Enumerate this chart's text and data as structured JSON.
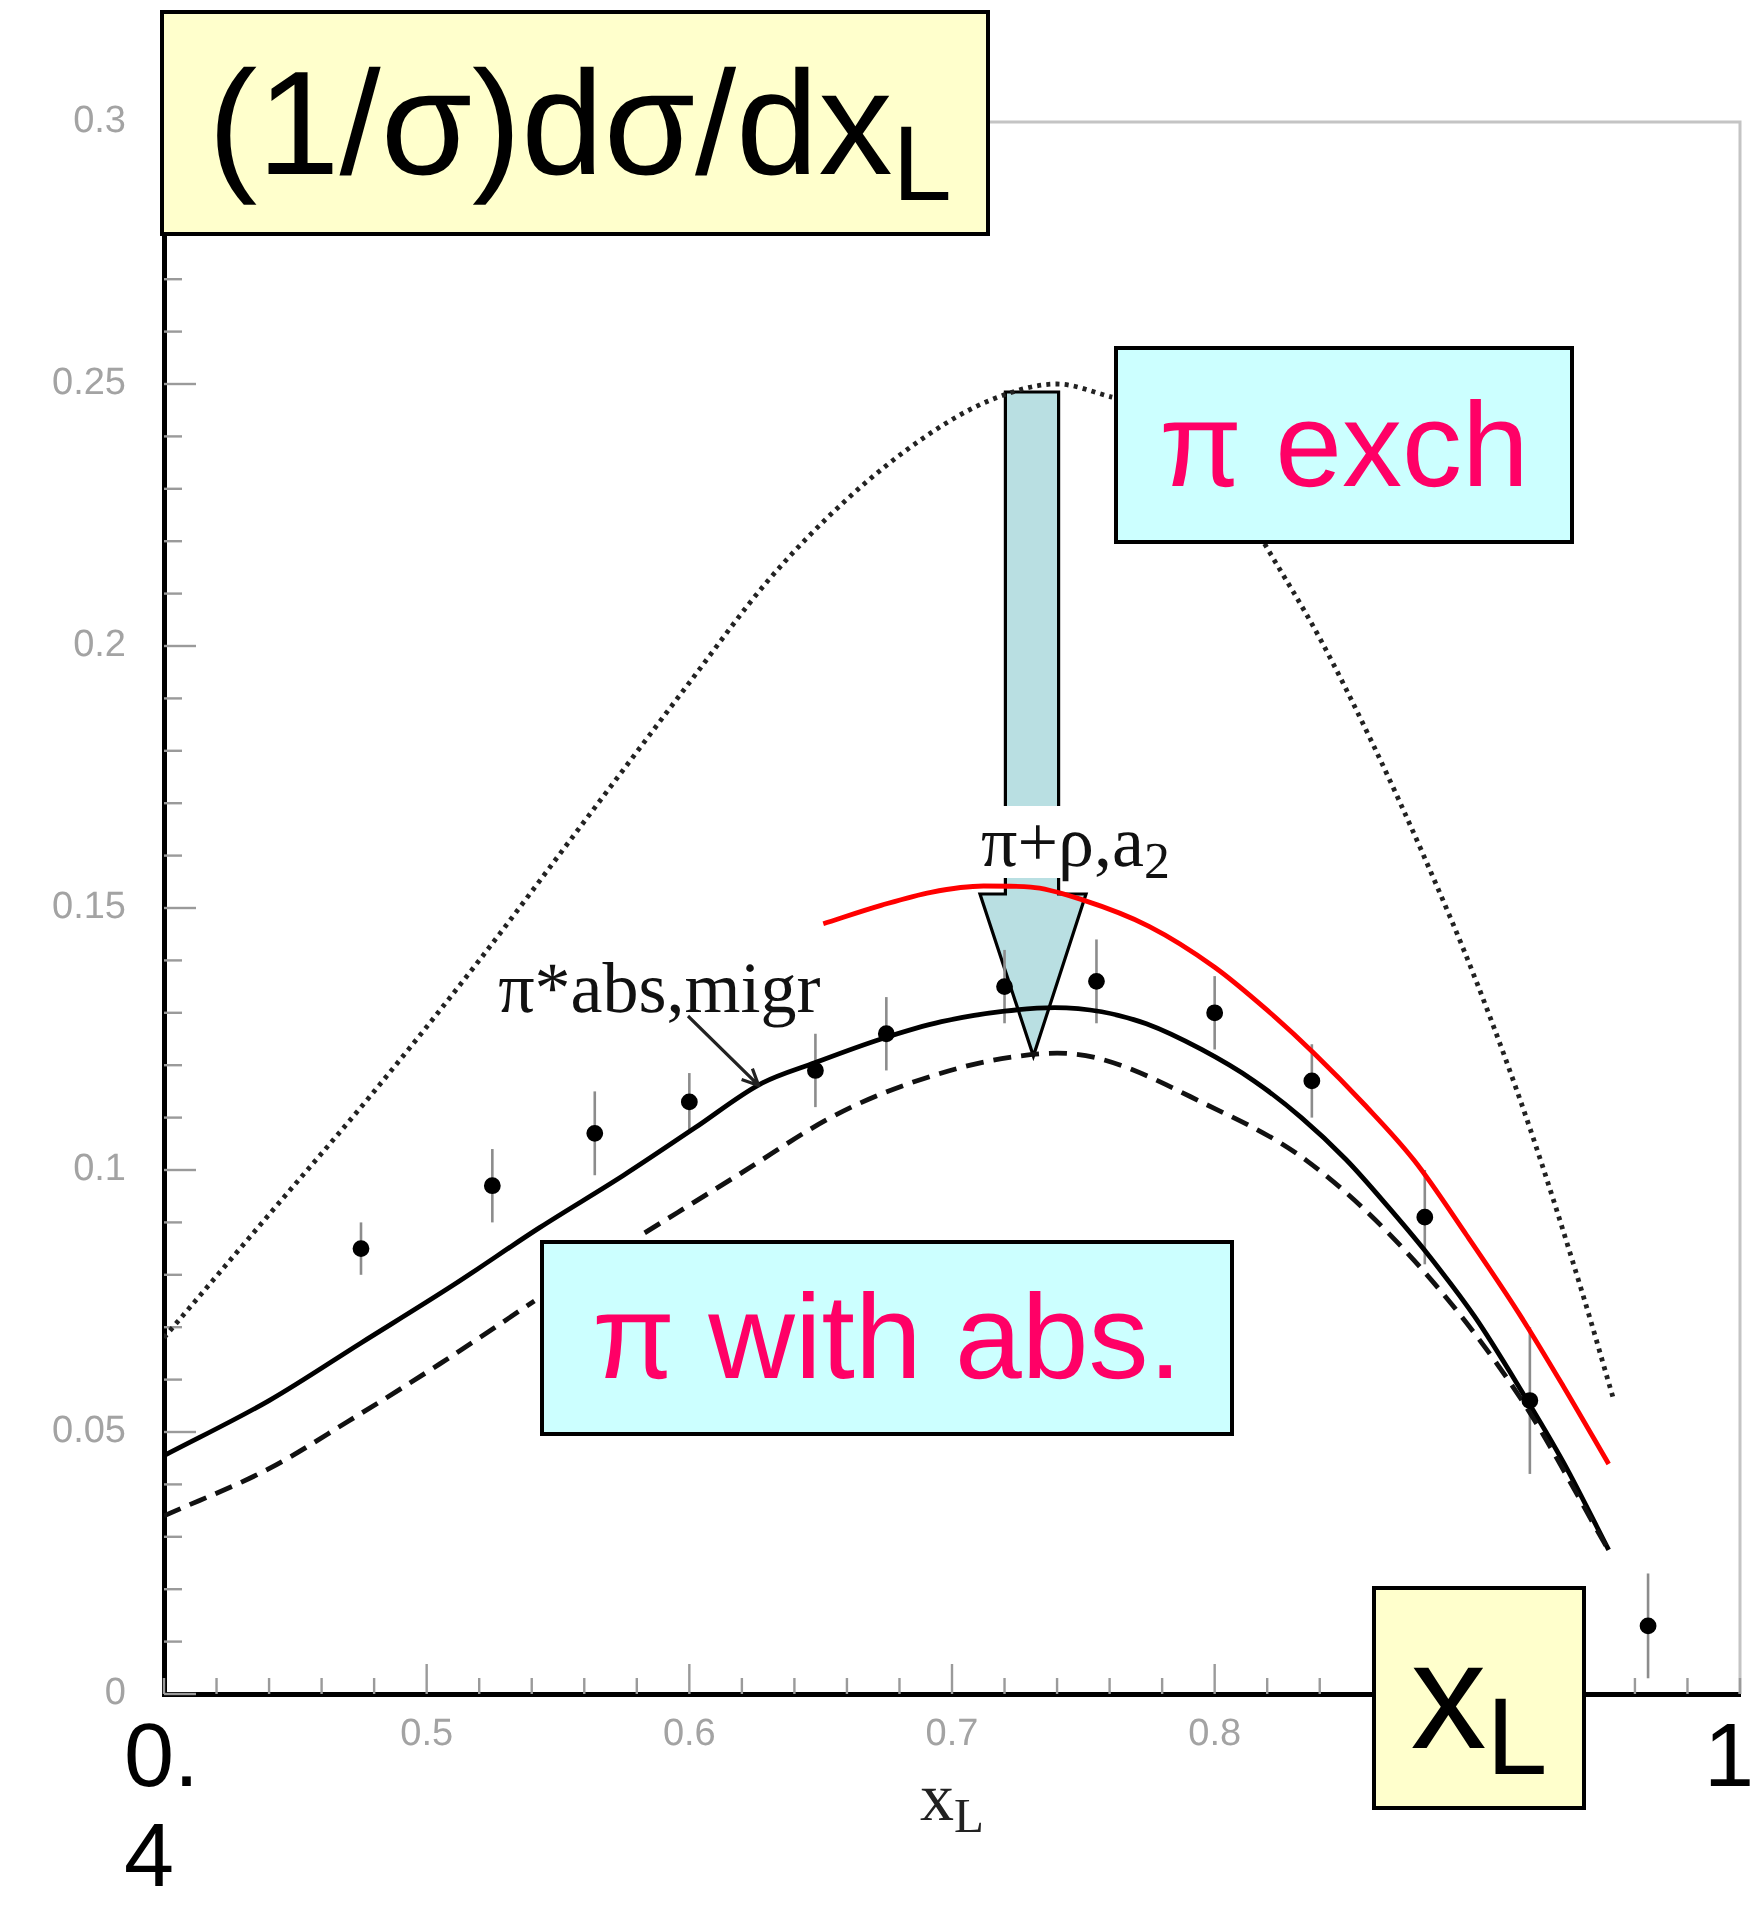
{
  "chart_data": {
    "type": "line",
    "ylabel": "(1/σ)dσ/dx$_{L}$",
    "xlabel": "x$_{L}$",
    "xlim": [
      0.4,
      1
    ],
    "ylim": [
      0,
      0.3
    ],
    "xticks": [
      {
        "value": 0.4,
        "label": null
      },
      {
        "value": 0.42,
        "label": null
      },
      {
        "value": 0.44,
        "label": null
      },
      {
        "value": 0.46,
        "label": null
      },
      {
        "value": 0.48,
        "label": null
      },
      0.5,
      {
        "value": 0.52,
        "label": null
      },
      {
        "value": 0.54,
        "label": null
      },
      {
        "value": 0.56,
        "label": null
      },
      {
        "value": 0.58,
        "label": null
      },
      0.6,
      {
        "value": 0.62,
        "label": null
      },
      {
        "value": 0.64,
        "label": null
      },
      {
        "value": 0.66,
        "label": null
      },
      {
        "value": 0.68,
        "label": null
      },
      0.7,
      {
        "value": 0.72,
        "label": null
      },
      {
        "value": 0.74,
        "label": null
      },
      {
        "value": 0.76,
        "label": null
      },
      {
        "value": 0.78,
        "label": null
      },
      0.8,
      {
        "value": 0.82,
        "label": null
      },
      {
        "value": 0.84,
        "label": null
      },
      {
        "value": 0.96,
        "label": null
      },
      {
        "value": 0.98,
        "label": null
      },
      {
        "value": 1,
        "label": null
      }
    ],
    "yticks": [
      0,
      {
        "value": 0.01,
        "label": null
      },
      {
        "value": 0.02,
        "label": null
      },
      {
        "value": 0.03,
        "label": null
      },
      {
        "value": 0.04,
        "label": null
      },
      0.05,
      {
        "value": 0.06,
        "label": null
      },
      {
        "value": 0.07,
        "label": null
      },
      {
        "value": 0.08,
        "label": null
      },
      {
        "value": 0.09,
        "label": null
      },
      0.1,
      {
        "value": 0.11,
        "label": null
      },
      {
        "value": 0.12,
        "label": null
      },
      {
        "value": 0.13,
        "label": null
      },
      {
        "value": 0.14,
        "label": null
      },
      0.15,
      {
        "value": 0.16,
        "label": null
      },
      {
        "value": 0.17,
        "label": null
      },
      {
        "value": 0.18,
        "label": null
      },
      {
        "value": 0.19,
        "label": null
      },
      0.2,
      {
        "value": 0.21,
        "label": null
      },
      {
        "value": 0.22,
        "label": null
      },
      {
        "value": 0.23,
        "label": null
      },
      {
        "value": 0.24,
        "label": null
      },
      0.25,
      {
        "value": 0.26,
        "label": null
      },
      {
        "value": 0.27,
        "label": null
      },
      0.3
    ],
    "marker": "none",
    "series": [
      {
        "line_style": "dotted",
        "color": "#222222",
        "x": [
          0.4,
          0.44,
          0.48,
          0.52,
          0.56,
          0.6,
          0.63,
          0.66,
          0.69,
          0.715,
          0.74,
          0.761,
          0.79,
          0.819,
          0.84,
          0.86,
          0.88,
          0.9,
          0.92,
          0.94,
          0.952
        ],
        "values": [
          0.068,
          0.0915,
          0.115,
          0.14,
          0.1665,
          0.193,
          0.2125,
          0.228,
          0.24,
          0.247,
          0.25,
          0.2475,
          null,
          0.2195,
          0.2015,
          0.1815,
          0.1595,
          0.1355,
          0.108,
          0.0765,
          0.056
        ]
      },
      {
        "line_style": "dashed",
        "color": "#111111",
        "x": [
          0.4,
          0.44,
          0.47,
          0.505,
          0.541,
          0.562,
          0.583,
          0.62,
          0.652,
          0.673,
          0.703,
          0.722,
          0.74,
          0.758,
          0.794,
          0.835,
          0.876,
          0.916,
          0.95
        ],
        "values": [
          0.034,
          0.043,
          0.052,
          0.063,
          0.075,
          null,
          0.088,
          0.0995,
          0.1095,
          0.1145,
          0.1195,
          0.1215,
          0.1223,
          0.121,
          0.1132,
          0.1018,
          0.0827,
          0.0568,
          0.0274
        ]
      },
      {
        "line_style": "solid",
        "color": "#000000",
        "x": [
          0.4,
          0.44,
          0.475,
          0.51,
          0.543,
          0.575,
          0.602,
          0.627,
          0.648,
          0.673,
          0.696,
          0.72,
          0.739,
          0.757,
          0.774,
          0.795,
          0.815,
          0.833,
          0.85,
          0.866,
          0.881,
          0.899,
          0.916,
          0.933,
          0.95
        ],
        "values": [
          0.0455,
          0.056,
          0.067,
          0.078,
          0.089,
          0.099,
          0.108,
          0.1164,
          0.1205,
          0.125,
          0.1283,
          0.1303,
          0.131,
          0.1302,
          0.1279,
          0.123,
          0.117,
          0.11,
          0.102,
          0.093,
          0.084,
          0.072,
          0.0585,
          0.044,
          0.0275
        ]
      },
      {
        "line_style": "solid",
        "color": "#ff0000",
        "x": [
          0.651,
          0.673,
          0.692,
          0.712,
          0.73,
          0.75,
          0.775,
          0.8,
          0.82,
          0.838,
          0.857,
          0.876,
          0.896,
          0.916,
          0.933,
          0.95
        ],
        "values": [
          0.147,
          0.1505,
          0.153,
          0.1542,
          0.154,
          0.1515,
          0.1465,
          0.1387,
          0.1305,
          0.1222,
          0.1125,
          0.1018,
          0.0875,
          0.0725,
          0.0585,
          0.0439
        ]
      },
      {
        "type": "scatter",
        "marker": "circle",
        "color": "#000000",
        "x": [
          0.475,
          0.525,
          0.564,
          0.6,
          0.648,
          0.675,
          0.72,
          0.755,
          0.8,
          0.837,
          0.88,
          0.92,
          0.965
        ],
        "values": [
          0.085,
          0.097,
          0.107,
          0.113,
          0.119,
          0.126,
          0.135,
          0.136,
          0.13,
          0.117,
          0.091,
          0.056,
          0.013
        ],
        "errors": [
          0.005,
          0.007,
          0.008,
          0.0055,
          0.007,
          0.007,
          0.007,
          0.008,
          0.007,
          0.007,
          0.009,
          0.014,
          0.01
        ]
      }
    ],
    "annotations": [
      {
        "text": "π*abs,migr",
        "x": 0.627,
        "y": 0.116
      },
      {
        "text": "π+ρ,a$_{2}$",
        "x": 0.747,
        "y": 0.152
      },
      "π exch",
      "π with abs.",
      "x$_{L}$",
      "0.4",
      "1"
    ]
  }
}
